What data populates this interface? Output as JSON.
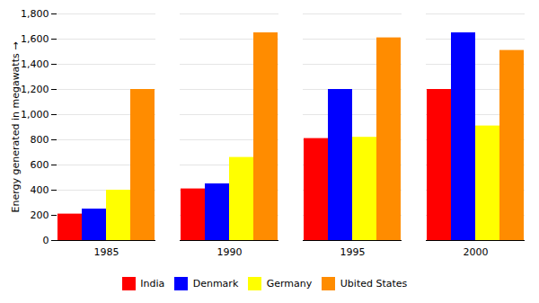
{
  "chart_data": {
    "type": "bar",
    "categories": [
      "1985",
      "1990",
      "1995",
      "2000"
    ],
    "series": [
      {
        "name": "India",
        "color": "#ff0000",
        "values": [
          210,
          410,
          810,
          1200
        ]
      },
      {
        "name": "Denmark",
        "color": "#0000ff",
        "values": [
          250,
          450,
          1200,
          1650
        ]
      },
      {
        "name": "Germany",
        "color": "#ffff00",
        "values": [
          400,
          660,
          820,
          910
        ]
      },
      {
        "name": "Ubited States",
        "color": "#ff8c00",
        "values": [
          1200,
          1650,
          1610,
          1510
        ]
      }
    ],
    "ylabel": "Energy generated in megawatts",
    "ylim": [
      0,
      1800
    ],
    "yticks": [
      0,
      200,
      400,
      600,
      800,
      1000,
      1200,
      1400,
      1600,
      1800
    ],
    "grid": true,
    "legend": "bottom"
  }
}
